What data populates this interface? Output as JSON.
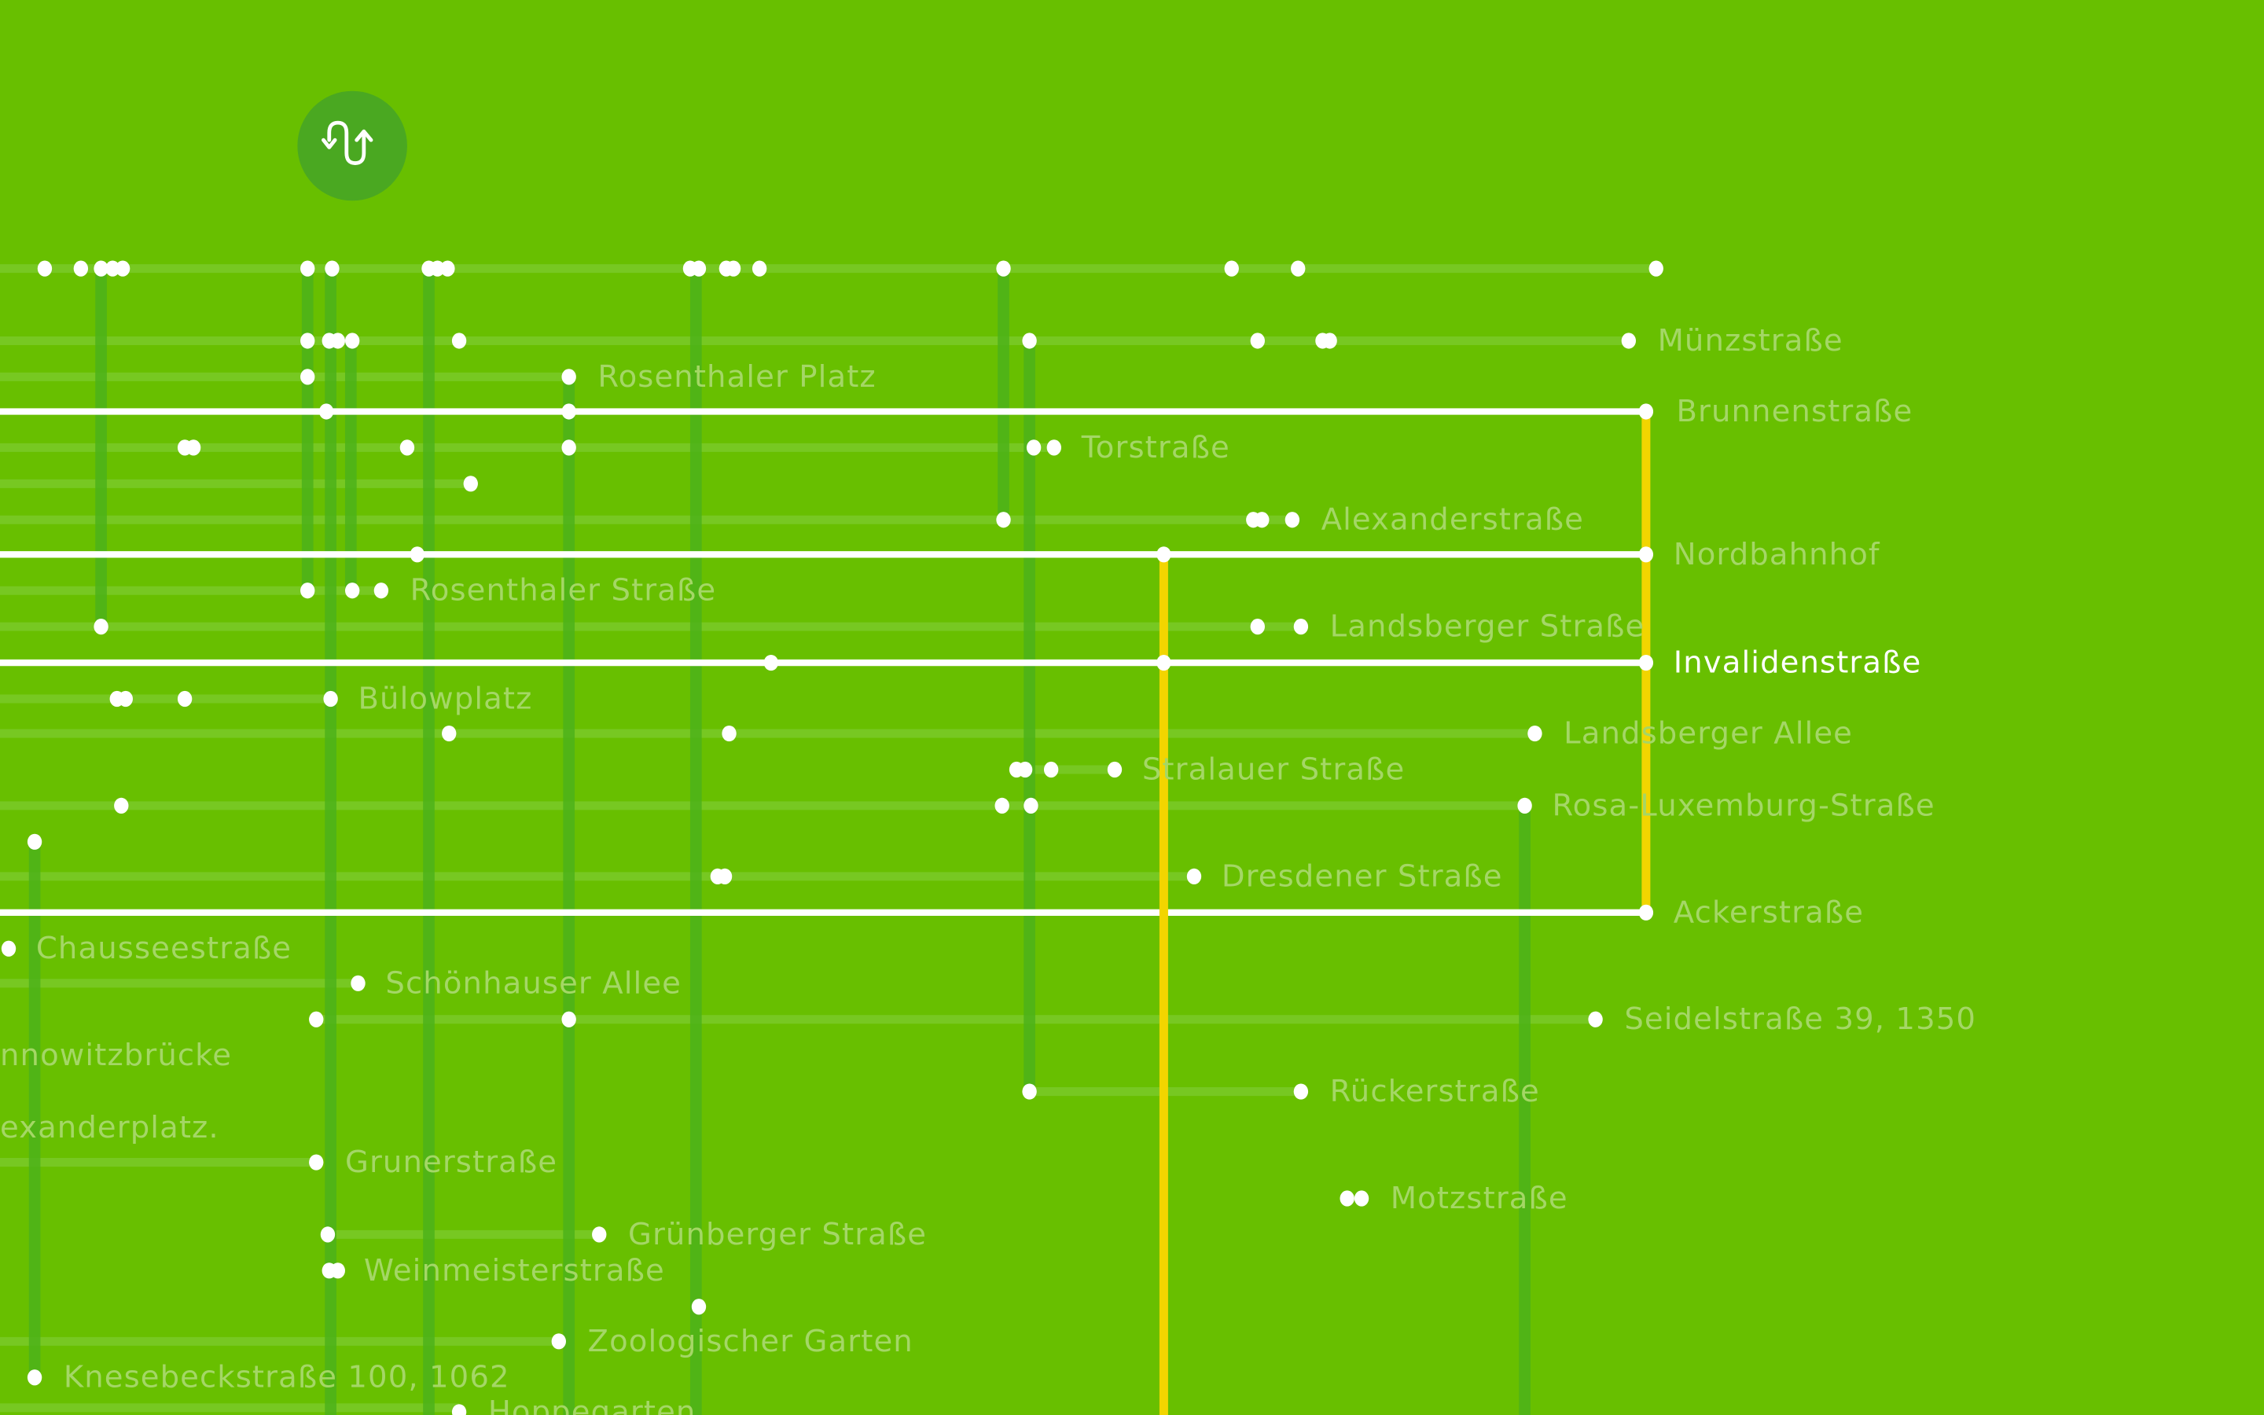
{
  "colors": {
    "background": "#68bf00",
    "route_line": "#ffffff",
    "transfer_line": "#f2d500",
    "vertical_line": "#4cb21a",
    "row_line": "#7ccb2e",
    "label": "#a4d766",
    "highlight_label": "#ffffff",
    "button_bg": "#4aa821"
  },
  "toggle_button": {
    "icon": "swap-arrows-icon"
  },
  "labels": [
    {
      "text": "Münzstraße"
    },
    {
      "text": "Rosenthaler Platz"
    },
    {
      "text": "Brunnenstraße"
    },
    {
      "text": "Torstraße"
    },
    {
      "text": "Alexanderstraße"
    },
    {
      "text": "Nordbahnhof"
    },
    {
      "text": "Rosenthaler Straße"
    },
    {
      "text": "Landsberger Straße"
    },
    {
      "text": "Invalidenstraße",
      "highlighted": true
    },
    {
      "text": "Bülowplatz"
    },
    {
      "text": "Landsberger Allee"
    },
    {
      "text": "Stralauer Straße"
    },
    {
      "text": "Rosa-Luxemburg-Straße"
    },
    {
      "text": "Dresdener Straße"
    },
    {
      "text": "Ackerstraße"
    },
    {
      "text": "Chausseestraße"
    },
    {
      "text": "Schönhauser Allee"
    },
    {
      "text": "Seidelstraße 39, 1350"
    },
    {
      "text": "nnowitzbrücke"
    },
    {
      "text": "exanderplatz."
    },
    {
      "text": "Rückerstraße"
    },
    {
      "text": "Grunerstraße"
    },
    {
      "text": "Motzstraße"
    },
    {
      "text": "Grünberger Straße"
    },
    {
      "text": "Weinmeisterstraße"
    },
    {
      "text": "Zoologischer Garten"
    },
    {
      "text": "Knesebeckstraße 100, 1062"
    },
    {
      "text": "Hoppegarten"
    }
  ]
}
